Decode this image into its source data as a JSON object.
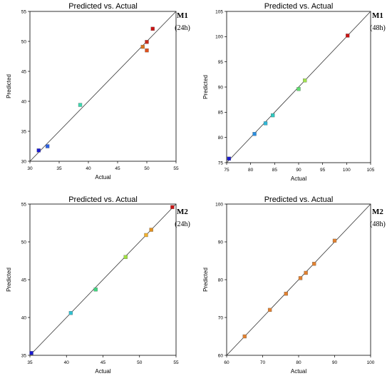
{
  "chart_data": [
    {
      "type": "scatter",
      "title": "Predicted vs. Actual",
      "tag": "M1",
      "tag_sub": "(24h)",
      "xlabel": "Actual",
      "ylabel": "Predicted",
      "xlim": [
        30,
        55
      ],
      "ylim": [
        30,
        55
      ],
      "xticks": [
        "30",
        "35",
        "40",
        "45",
        "50",
        "55"
      ],
      "yticks": [
        "30",
        "35",
        "40",
        "45",
        "50",
        "55"
      ],
      "points": [
        {
          "x": 31.5,
          "y": 31.8,
          "color": "#1a1ad0"
        },
        {
          "x": 33.0,
          "y": 32.5,
          "color": "#2a5ee0"
        },
        {
          "x": 38.6,
          "y": 39.4,
          "color": "#3fd8b0"
        },
        {
          "x": 49.3,
          "y": 49.1,
          "color": "#d8761e"
        },
        {
          "x": 50.0,
          "y": 48.5,
          "color": "#e0501c"
        },
        {
          "x": 50.0,
          "y": 49.9,
          "color": "#c82a1a"
        },
        {
          "x": 51.0,
          "y": 52.1,
          "color": "#c81414"
        }
      ]
    },
    {
      "type": "scatter",
      "title": "Predicted vs. Actual",
      "tag": "M1",
      "tag_sub": "(48h)",
      "xlabel": "Actual",
      "ylabel": "Predicted",
      "xlim": [
        75,
        105
      ],
      "ylim": [
        75,
        105
      ],
      "xticks": [
        "75",
        "80",
        "85",
        "90",
        "95",
        "100",
        "105"
      ],
      "yticks": [
        "75",
        "80",
        "85",
        "90",
        "95",
        "100",
        "105"
      ],
      "points": [
        {
          "x": 75.5,
          "y": 75.8,
          "color": "#1a1ad0"
        },
        {
          "x": 80.8,
          "y": 80.7,
          "color": "#2a8ee0"
        },
        {
          "x": 83.1,
          "y": 82.8,
          "color": "#30b8d8"
        },
        {
          "x": 84.6,
          "y": 84.4,
          "color": "#30c8c0"
        },
        {
          "x": 90.0,
          "y": 89.6,
          "color": "#60e070"
        },
        {
          "x": 91.3,
          "y": 91.3,
          "color": "#a0e050"
        },
        {
          "x": 100.2,
          "y": 100.2,
          "color": "#c81414"
        }
      ]
    },
    {
      "type": "scatter",
      "title": "Predicted vs. Actual",
      "tag": "M2",
      "tag_sub": "(24h)",
      "xlabel": "Actual",
      "ylabel": "Predicted",
      "xlim": [
        35,
        55
      ],
      "ylim": [
        35,
        55
      ],
      "xticks": [
        "35",
        "40",
        "45",
        "50",
        "55"
      ],
      "yticks": [
        "35",
        "40",
        "45",
        "50",
        "55"
      ],
      "points": [
        {
          "x": 35.2,
          "y": 35.3,
          "color": "#1a1ad0"
        },
        {
          "x": 40.6,
          "y": 40.6,
          "color": "#30c0d0"
        },
        {
          "x": 44.0,
          "y": 43.7,
          "color": "#40d880"
        },
        {
          "x": 48.1,
          "y": 48.0,
          "color": "#a0e040"
        },
        {
          "x": 50.9,
          "y": 50.9,
          "color": "#f0b030"
        },
        {
          "x": 51.6,
          "y": 51.6,
          "color": "#e09020"
        },
        {
          "x": 54.5,
          "y": 54.6,
          "color": "#c81414"
        }
      ]
    },
    {
      "type": "scatter",
      "title": "Predicted vs. Actual",
      "tag": "M2",
      "tag_sub": "(48h)",
      "xlabel": "Actual",
      "ylabel": "Predicted",
      "xlim": [
        60,
        100
      ],
      "ylim": [
        60,
        100
      ],
      "xticks": [
        "60",
        "70",
        "80",
        "90",
        "100"
      ],
      "yticks": [
        "60",
        "70",
        "80",
        "90",
        "100"
      ],
      "points": [
        {
          "x": 65.0,
          "y": 65.0,
          "color": "#e08030"
        },
        {
          "x": 72.0,
          "y": 72.0,
          "color": "#e08030"
        },
        {
          "x": 76.5,
          "y": 76.3,
          "color": "#e08030"
        },
        {
          "x": 80.5,
          "y": 80.4,
          "color": "#e08030"
        },
        {
          "x": 82.0,
          "y": 81.8,
          "color": "#e08030"
        },
        {
          "x": 84.3,
          "y": 84.2,
          "color": "#e08030"
        },
        {
          "x": 90.0,
          "y": 90.3,
          "color": "#e08030"
        }
      ]
    }
  ]
}
